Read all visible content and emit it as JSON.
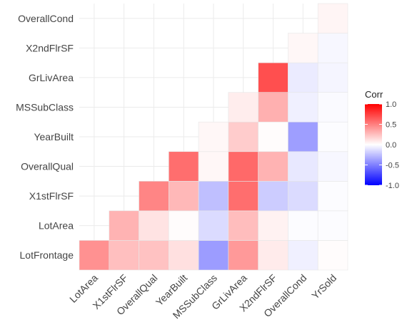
{
  "chart_data": {
    "type": "heatmap",
    "variables": [
      "LotFrontage",
      "LotArea",
      "X1stFlrSF",
      "OverallQual",
      "YearBuilt",
      "MSSubClass",
      "GrLivArea",
      "X2ndFlrSF",
      "OverallCond",
      "YrSold"
    ],
    "x_labels": [
      "LotArea",
      "X1stFlrSF",
      "OverallQual",
      "YearBuilt",
      "MSSubClass",
      "GrLivArea",
      "X2ndFlrSF",
      "OverallCond",
      "YrSold"
    ],
    "y_labels_bottom_to_top": [
      "LotFrontage",
      "LotArea",
      "X1stFlrSF",
      "OverallQual",
      "YearBuilt",
      "MSSubClass",
      "GrLivArea",
      "X2ndFlrSF",
      "OverallCond"
    ],
    "cells": [
      {
        "x": "LotArea",
        "y": "LotFrontage",
        "value": 0.43
      },
      {
        "x": "X1stFlrSF",
        "y": "LotFrontage",
        "value": 0.25
      },
      {
        "x": "OverallQual",
        "y": "LotFrontage",
        "value": 0.24
      },
      {
        "x": "YearBuilt",
        "y": "LotFrontage",
        "value": 0.12
      },
      {
        "x": "MSSubClass",
        "y": "LotFrontage",
        "value": -0.39
      },
      {
        "x": "GrLivArea",
        "y": "LotFrontage",
        "value": 0.4
      },
      {
        "x": "X2ndFlrSF",
        "y": "LotFrontage",
        "value": 0.08
      },
      {
        "x": "OverallCond",
        "y": "LotFrontage",
        "value": -0.06
      },
      {
        "x": "YrSold",
        "y": "LotFrontage",
        "value": 0.01
      },
      {
        "x": "X1stFlrSF",
        "y": "LotArea",
        "value": 0.3
      },
      {
        "x": "OverallQual",
        "y": "LotArea",
        "value": 0.11
      },
      {
        "x": "YearBuilt",
        "y": "LotArea",
        "value": 0.01
      },
      {
        "x": "MSSubClass",
        "y": "LotArea",
        "value": -0.14
      },
      {
        "x": "GrLivArea",
        "y": "LotArea",
        "value": 0.26
      },
      {
        "x": "X2ndFlrSF",
        "y": "LotArea",
        "value": 0.05
      },
      {
        "x": "OverallCond",
        "y": "LotArea",
        "value": -0.01
      },
      {
        "x": "YrSold",
        "y": "LotArea",
        "value": -0.01
      },
      {
        "x": "OverallQual",
        "y": "X1stFlrSF",
        "value": 0.48
      },
      {
        "x": "YearBuilt",
        "y": "X1stFlrSF",
        "value": 0.28
      },
      {
        "x": "MSSubClass",
        "y": "X1stFlrSF",
        "value": -0.25
      },
      {
        "x": "GrLivArea",
        "y": "X1stFlrSF",
        "value": 0.57
      },
      {
        "x": "X2ndFlrSF",
        "y": "X1stFlrSF",
        "value": -0.2
      },
      {
        "x": "OverallCond",
        "y": "X1stFlrSF",
        "value": -0.14
      },
      {
        "x": "YrSold",
        "y": "X1stFlrSF",
        "value": -0.01
      },
      {
        "x": "YearBuilt",
        "y": "OverallQual",
        "value": 0.57
      },
      {
        "x": "MSSubClass",
        "y": "OverallQual",
        "value": 0.03
      },
      {
        "x": "GrLivArea",
        "y": "OverallQual",
        "value": 0.59
      },
      {
        "x": "X2ndFlrSF",
        "y": "OverallQual",
        "value": 0.3
      },
      {
        "x": "OverallCond",
        "y": "OverallQual",
        "value": -0.09
      },
      {
        "x": "YrSold",
        "y": "OverallQual",
        "value": -0.03
      },
      {
        "x": "MSSubClass",
        "y": "YearBuilt",
        "value": 0.03
      },
      {
        "x": "GrLivArea",
        "y": "YearBuilt",
        "value": 0.2
      },
      {
        "x": "X2ndFlrSF",
        "y": "YearBuilt",
        "value": 0.01
      },
      {
        "x": "OverallCond",
        "y": "YearBuilt",
        "value": -0.38
      },
      {
        "x": "YrSold",
        "y": "YearBuilt",
        "value": -0.01
      },
      {
        "x": "GrLivArea",
        "y": "MSSubClass",
        "value": 0.07
      },
      {
        "x": "X2ndFlrSF",
        "y": "MSSubClass",
        "value": 0.31
      },
      {
        "x": "OverallCond",
        "y": "MSSubClass",
        "value": -0.06
      },
      {
        "x": "YrSold",
        "y": "MSSubClass",
        "value": -0.02
      },
      {
        "x": "X2ndFlrSF",
        "y": "GrLivArea",
        "value": 0.69
      },
      {
        "x": "OverallCond",
        "y": "GrLivArea",
        "value": -0.08
      },
      {
        "x": "YrSold",
        "y": "GrLivArea",
        "value": -0.04
      },
      {
        "x": "OverallCond",
        "y": "X2ndFlrSF",
        "value": 0.03
      },
      {
        "x": "YrSold",
        "y": "X2ndFlrSF",
        "value": -0.03
      },
      {
        "x": "YrSold",
        "y": "OverallCond",
        "value": 0.04
      }
    ],
    "legend": {
      "title": "Corr",
      "ticks": [
        "1.0",
        "0.5",
        "0.0",
        "-0.5",
        "-1.0"
      ],
      "range": [
        -1,
        1
      ],
      "low_color": "#0000ff",
      "mid_color": "#ffffff",
      "high_color": "#ff0000",
      "placement": "right"
    },
    "title": "",
    "xlabel": "",
    "ylabel": "",
    "grid": true
  }
}
